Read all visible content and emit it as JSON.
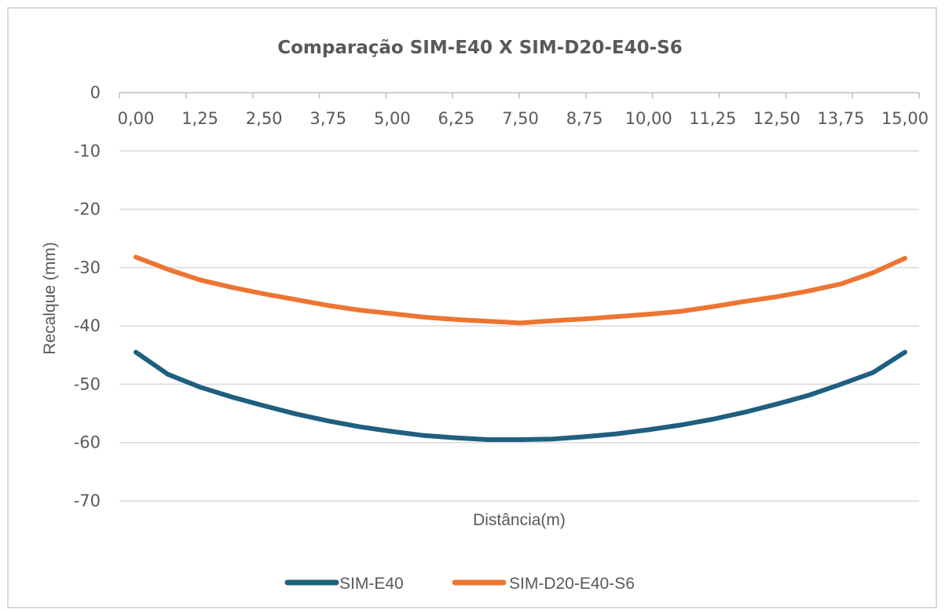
{
  "chart_data": {
    "type": "line",
    "title": "Comparação SIM-E40 X SIM-D20-E40-S6",
    "xlabel": "Distância(m)",
    "ylabel": "Recalque (mm)",
    "x_tick_labels": [
      "0,00",
      "1,25",
      "2,50",
      "3,75",
      "5,00",
      "6,25",
      "7,50",
      "8,75",
      "10,00",
      "11,25",
      "12,50",
      "13,75",
      "15,00"
    ],
    "y_tick_labels": [
      "0",
      "-10",
      "-20",
      "-30",
      "-40",
      "-50",
      "-60",
      "-70"
    ],
    "y_ticks": [
      0,
      -10,
      -20,
      -30,
      -40,
      -50,
      -60,
      -70
    ],
    "ylim": [
      -70,
      0
    ],
    "xlim": [
      0,
      15
    ],
    "grid": true,
    "legend_position": "bottom",
    "series": [
      {
        "name": "SIM-E40",
        "color": "#1f5f7f",
        "x": [
          0,
          0.625,
          1.25,
          1.875,
          2.5,
          3.125,
          3.75,
          4.375,
          5,
          5.625,
          6.25,
          6.875,
          7.5,
          8.125,
          8.75,
          9.375,
          10,
          10.625,
          11.25,
          11.875,
          12.5,
          13.125,
          13.75,
          14.375,
          15
        ],
        "values": [
          -44.5,
          -48.3,
          -50.5,
          -52.2,
          -53.7,
          -55.1,
          -56.3,
          -57.3,
          -58.1,
          -58.8,
          -59.2,
          -59.5,
          -59.5,
          -59.4,
          -59.0,
          -58.5,
          -57.8,
          -57.0,
          -56.0,
          -54.8,
          -53.4,
          -51.9,
          -50.0,
          -48.0,
          -44.5
        ]
      },
      {
        "name": "SIM-D20-E40-S6",
        "color": "#ed7532",
        "x": [
          0,
          0.625,
          1.25,
          1.875,
          2.5,
          3.125,
          3.75,
          4.375,
          5,
          5.625,
          6.25,
          6.875,
          7.5,
          8.125,
          8.75,
          9.375,
          10,
          10.625,
          11.25,
          11.875,
          12.5,
          13.125,
          13.75,
          14.375,
          15
        ],
        "values": [
          -28.2,
          -30.3,
          -32.1,
          -33.4,
          -34.5,
          -35.5,
          -36.5,
          -37.3,
          -37.9,
          -38.5,
          -38.9,
          -39.2,
          -39.5,
          -39.1,
          -38.8,
          -38.4,
          -38.0,
          -37.5,
          -36.7,
          -35.8,
          -35.0,
          -34.0,
          -32.8,
          -30.9,
          -28.4
        ]
      }
    ]
  }
}
